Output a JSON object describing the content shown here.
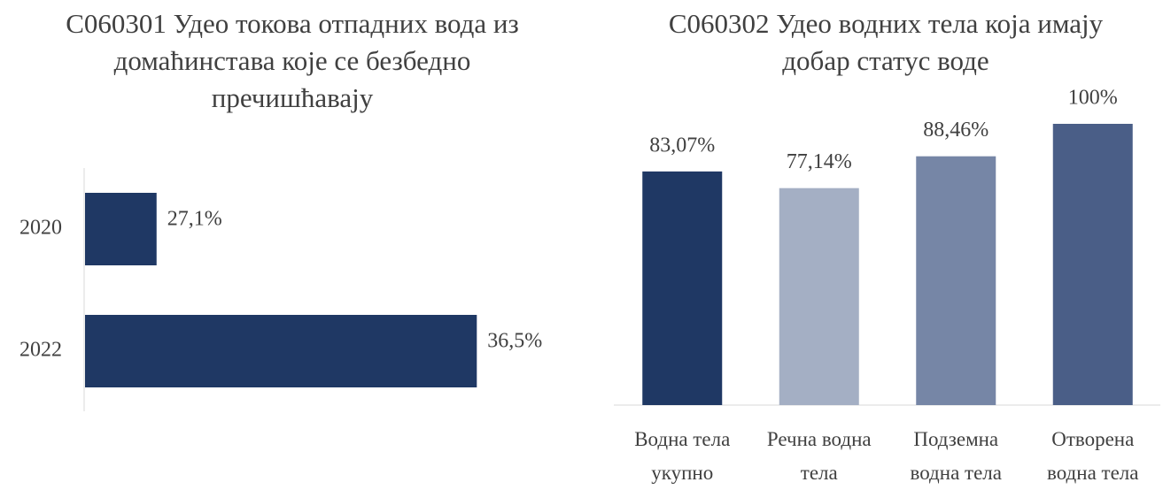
{
  "chart_data": [
    {
      "type": "bar",
      "horizontal": true,
      "title": "C060301 Удео токова отпадних вода из домаћинстава које се безбедно пречишћавају",
      "categories": [
        "2020",
        "2022"
      ],
      "values": [
        27.1,
        36.5
      ],
      "value_labels": [
        "27,1%",
        "36,5%"
      ],
      "color": "#1f3864",
      "xlim": [
        25,
        38
      ]
    },
    {
      "type": "bar",
      "title": "C060302 Удео водних тела која имају добар статус воде",
      "categories": [
        "Водна тела укупно",
        "Речна водна тела",
        "Подземна водна тела",
        "Отворена водна тела"
      ],
      "values": [
        83.07,
        77.14,
        88.46,
        100
      ],
      "value_labels": [
        "83,07%",
        "77,14%",
        "88,46%",
        "100%"
      ],
      "colors": [
        "#1f3864",
        "#a4afc4",
        "#7686a6",
        "#4a5e87"
      ],
      "ylim": [
        0,
        100
      ]
    }
  ]
}
